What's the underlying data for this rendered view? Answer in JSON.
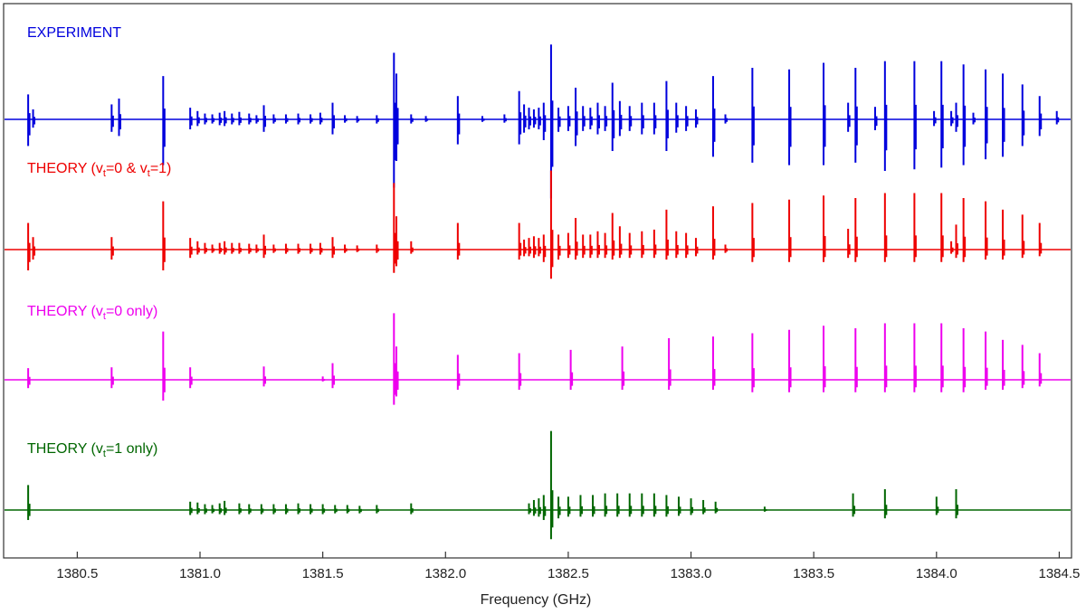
{
  "chart_data": {
    "type": "line",
    "xlabel": "Frequency (GHz)",
    "xlim": [
      1380.2,
      1384.55
    ],
    "xticks": [
      1380.5,
      1381.0,
      1381.5,
      1382.0,
      1382.5,
      1383.0,
      1383.5,
      1384.0,
      1384.5
    ],
    "xtick_labels": [
      "1380.5",
      "1381.0",
      "1381.5",
      "1382.0",
      "1382.5",
      "1383.0",
      "1383.5",
      "1384.0",
      "1384.5"
    ],
    "grid": false,
    "series": [
      {
        "name": "EXPERIMENT",
        "label_parts": [
          {
            "t": "EXPERIMENT"
          }
        ],
        "color": "#0000dd",
        "lines": [
          [
            1380.3,
            0.3,
            0.32
          ],
          [
            1380.32,
            0.12,
            0.1
          ],
          [
            1380.64,
            0.18,
            0.15
          ],
          [
            1380.67,
            0.25,
            0.2
          ],
          [
            1380.85,
            0.52,
            0.55
          ],
          [
            1380.96,
            0.14,
            0.12
          ],
          [
            1380.99,
            0.1,
            0.08
          ],
          [
            1381.02,
            0.07,
            0.06
          ],
          [
            1381.05,
            0.06,
            0.05
          ],
          [
            1381.08,
            0.08,
            0.07
          ],
          [
            1381.1,
            0.1,
            0.08
          ],
          [
            1381.13,
            0.07,
            0.06
          ],
          [
            1381.16,
            0.09,
            0.07
          ],
          [
            1381.2,
            0.07,
            0.06
          ],
          [
            1381.23,
            0.05,
            0.05
          ],
          [
            1381.26,
            0.17,
            0.15
          ],
          [
            1381.3,
            0.06,
            0.05
          ],
          [
            1381.35,
            0.06,
            0.05
          ],
          [
            1381.4,
            0.07,
            0.06
          ],
          [
            1381.45,
            0.06,
            0.05
          ],
          [
            1381.49,
            0.08,
            0.06
          ],
          [
            1381.54,
            0.2,
            0.18
          ],
          [
            1381.59,
            0.05,
            0.04
          ],
          [
            1381.64,
            0.04,
            0.04
          ],
          [
            1381.72,
            0.05,
            0.05
          ],
          [
            1381.79,
            0.8,
            0.82
          ],
          [
            1381.8,
            0.55,
            0.5
          ],
          [
            1381.86,
            0.06,
            0.05
          ],
          [
            1381.92,
            0.04,
            0.03
          ],
          [
            1382.05,
            0.28,
            0.3
          ],
          [
            1382.15,
            0.04,
            0.03
          ],
          [
            1382.24,
            0.06,
            0.04
          ],
          [
            1382.3,
            0.34,
            0.3
          ],
          [
            1382.32,
            0.18,
            0.16
          ],
          [
            1382.34,
            0.14,
            0.12
          ],
          [
            1382.36,
            0.12,
            0.1
          ],
          [
            1382.38,
            0.14,
            0.12
          ],
          [
            1382.4,
            0.2,
            0.25
          ],
          [
            1382.43,
            0.9,
            0.95
          ],
          [
            1382.46,
            0.14,
            0.15
          ],
          [
            1382.5,
            0.16,
            0.14
          ],
          [
            1382.53,
            0.38,
            0.32
          ],
          [
            1382.56,
            0.16,
            0.14
          ],
          [
            1382.59,
            0.14,
            0.12
          ],
          [
            1382.62,
            0.2,
            0.18
          ],
          [
            1382.65,
            0.16,
            0.14
          ],
          [
            1382.68,
            0.44,
            0.38
          ],
          [
            1382.71,
            0.22,
            0.2
          ],
          [
            1382.75,
            0.16,
            0.14
          ],
          [
            1382.8,
            0.2,
            0.18
          ],
          [
            1382.85,
            0.2,
            0.18
          ],
          [
            1382.9,
            0.46,
            0.38
          ],
          [
            1382.94,
            0.2,
            0.16
          ],
          [
            1382.98,
            0.16,
            0.14
          ],
          [
            1383.02,
            0.12,
            0.1
          ],
          [
            1383.09,
            0.52,
            0.45
          ],
          [
            1383.14,
            0.06,
            0.05
          ],
          [
            1383.25,
            0.62,
            0.52
          ],
          [
            1383.4,
            0.6,
            0.55
          ],
          [
            1383.54,
            0.68,
            0.55
          ],
          [
            1383.64,
            0.2,
            0.15
          ],
          [
            1383.67,
            0.62,
            0.52
          ],
          [
            1383.75,
            0.15,
            0.13
          ],
          [
            1383.79,
            0.7,
            0.62
          ],
          [
            1383.91,
            0.7,
            0.6
          ],
          [
            1383.99,
            0.1,
            0.08
          ],
          [
            1384.02,
            0.7,
            0.58
          ],
          [
            1384.06,
            0.1,
            0.08
          ],
          [
            1384.08,
            0.2,
            0.15
          ],
          [
            1384.11,
            0.66,
            0.55
          ],
          [
            1384.15,
            0.08,
            0.06
          ],
          [
            1384.2,
            0.6,
            0.48
          ],
          [
            1384.27,
            0.55,
            0.45
          ],
          [
            1384.35,
            0.42,
            0.32
          ],
          [
            1384.42,
            0.28,
            0.2
          ],
          [
            1384.49,
            0.1,
            0.06
          ]
        ]
      },
      {
        "name": "THEORY (vt=0 & vt=1)",
        "label_parts": [
          {
            "t": "THEORY (v"
          },
          {
            "t": "t",
            "sub": true
          },
          {
            "t": "=0 & v"
          },
          {
            "t": "t",
            "sub": true
          },
          {
            "t": "=1)"
          }
        ],
        "color": "#ee0000",
        "lines": [
          [
            1380.3,
            0.32,
            0.25
          ],
          [
            1380.32,
            0.15,
            0.12
          ],
          [
            1380.64,
            0.15,
            0.12
          ],
          [
            1380.85,
            0.58,
            0.25
          ],
          [
            1380.96,
            0.14,
            0.1
          ],
          [
            1380.99,
            0.1,
            0.06
          ],
          [
            1381.02,
            0.08,
            0.05
          ],
          [
            1381.05,
            0.06,
            0.04
          ],
          [
            1381.08,
            0.08,
            0.05
          ],
          [
            1381.1,
            0.1,
            0.06
          ],
          [
            1381.13,
            0.08,
            0.05
          ],
          [
            1381.16,
            0.08,
            0.05
          ],
          [
            1381.2,
            0.07,
            0.05
          ],
          [
            1381.23,
            0.06,
            0.04
          ],
          [
            1381.26,
            0.18,
            0.1
          ],
          [
            1381.3,
            0.06,
            0.04
          ],
          [
            1381.35,
            0.07,
            0.05
          ],
          [
            1381.4,
            0.07,
            0.05
          ],
          [
            1381.45,
            0.07,
            0.05
          ],
          [
            1381.49,
            0.08,
            0.06
          ],
          [
            1381.54,
            0.15,
            0.1
          ],
          [
            1381.59,
            0.06,
            0.04
          ],
          [
            1381.64,
            0.05,
            0.03
          ],
          [
            1381.72,
            0.06,
            0.04
          ],
          [
            1381.79,
            0.8,
            0.28
          ],
          [
            1381.8,
            0.4,
            0.2
          ],
          [
            1381.86,
            0.1,
            0.05
          ],
          [
            1382.05,
            0.32,
            0.12
          ],
          [
            1382.3,
            0.32,
            0.12
          ],
          [
            1382.32,
            0.12,
            0.08
          ],
          [
            1382.34,
            0.14,
            0.08
          ],
          [
            1382.36,
            0.16,
            0.1
          ],
          [
            1382.38,
            0.14,
            0.08
          ],
          [
            1382.4,
            0.18,
            0.15
          ],
          [
            1382.43,
            0.95,
            0.35
          ],
          [
            1382.46,
            0.18,
            0.12
          ],
          [
            1382.5,
            0.2,
            0.1
          ],
          [
            1382.53,
            0.38,
            0.12
          ],
          [
            1382.56,
            0.18,
            0.1
          ],
          [
            1382.59,
            0.18,
            0.1
          ],
          [
            1382.62,
            0.22,
            0.1
          ],
          [
            1382.65,
            0.2,
            0.1
          ],
          [
            1382.68,
            0.44,
            0.12
          ],
          [
            1382.71,
            0.28,
            0.1
          ],
          [
            1382.75,
            0.2,
            0.1
          ],
          [
            1382.8,
            0.22,
            0.1
          ],
          [
            1382.85,
            0.24,
            0.1
          ],
          [
            1382.9,
            0.48,
            0.12
          ],
          [
            1382.94,
            0.22,
            0.1
          ],
          [
            1382.98,
            0.2,
            0.1
          ],
          [
            1383.02,
            0.14,
            0.08
          ],
          [
            1383.09,
            0.52,
            0.12
          ],
          [
            1383.14,
            0.06,
            0.04
          ],
          [
            1383.25,
            0.56,
            0.15
          ],
          [
            1383.4,
            0.6,
            0.15
          ],
          [
            1383.54,
            0.65,
            0.15
          ],
          [
            1383.64,
            0.25,
            0.1
          ],
          [
            1383.67,
            0.62,
            0.15
          ],
          [
            1383.79,
            0.68,
            0.15
          ],
          [
            1383.91,
            0.68,
            0.15
          ],
          [
            1384.02,
            0.68,
            0.15
          ],
          [
            1384.06,
            0.1,
            0.05
          ],
          [
            1384.08,
            0.3,
            0.1
          ],
          [
            1384.11,
            0.62,
            0.15
          ],
          [
            1384.2,
            0.58,
            0.12
          ],
          [
            1384.27,
            0.48,
            0.12
          ],
          [
            1384.35,
            0.42,
            0.1
          ],
          [
            1384.42,
            0.32,
            0.08
          ]
        ]
      },
      {
        "name": "THEORY (vt=0 only)",
        "label_parts": [
          {
            "t": "THEORY (v"
          },
          {
            "t": "t",
            "sub": true
          },
          {
            "t": "=0 only)"
          }
        ],
        "color": "#ee00ee",
        "lines": [
          [
            1380.3,
            0.14,
            0.1
          ],
          [
            1380.64,
            0.15,
            0.1
          ],
          [
            1380.85,
            0.58,
            0.25
          ],
          [
            1380.96,
            0.15,
            0.1
          ],
          [
            1381.26,
            0.16,
            0.08
          ],
          [
            1381.5,
            0.04,
            0.02
          ],
          [
            1381.54,
            0.2,
            0.1
          ],
          [
            1381.79,
            0.8,
            0.3
          ],
          [
            1381.8,
            0.4,
            0.2
          ],
          [
            1382.05,
            0.3,
            0.12
          ],
          [
            1382.3,
            0.32,
            0.12
          ],
          [
            1382.51,
            0.36,
            0.12
          ],
          [
            1382.72,
            0.4,
            0.12
          ],
          [
            1382.91,
            0.5,
            0.12
          ],
          [
            1383.09,
            0.52,
            0.12
          ],
          [
            1383.25,
            0.56,
            0.15
          ],
          [
            1383.4,
            0.6,
            0.15
          ],
          [
            1383.54,
            0.65,
            0.15
          ],
          [
            1383.67,
            0.62,
            0.15
          ],
          [
            1383.79,
            0.68,
            0.15
          ],
          [
            1383.91,
            0.68,
            0.15
          ],
          [
            1384.02,
            0.68,
            0.15
          ],
          [
            1384.11,
            0.62,
            0.15
          ],
          [
            1384.2,
            0.58,
            0.12
          ],
          [
            1384.27,
            0.48,
            0.12
          ],
          [
            1384.35,
            0.42,
            0.1
          ],
          [
            1384.42,
            0.32,
            0.08
          ]
        ]
      },
      {
        "name": "THEORY (vt=1 only)",
        "label_parts": [
          {
            "t": "THEORY (v"
          },
          {
            "t": "t",
            "sub": true
          },
          {
            "t": "=1 only)"
          }
        ],
        "color": "#006600",
        "lines": [
          [
            1380.3,
            0.3,
            0.12
          ],
          [
            1380.96,
            0.1,
            0.06
          ],
          [
            1380.99,
            0.09,
            0.05
          ],
          [
            1381.02,
            0.07,
            0.05
          ],
          [
            1381.05,
            0.06,
            0.04
          ],
          [
            1381.08,
            0.08,
            0.05
          ],
          [
            1381.1,
            0.11,
            0.06
          ],
          [
            1381.16,
            0.08,
            0.05
          ],
          [
            1381.2,
            0.07,
            0.05
          ],
          [
            1381.25,
            0.07,
            0.05
          ],
          [
            1381.3,
            0.07,
            0.05
          ],
          [
            1381.35,
            0.07,
            0.05
          ],
          [
            1381.4,
            0.08,
            0.05
          ],
          [
            1381.45,
            0.07,
            0.05
          ],
          [
            1381.5,
            0.07,
            0.05
          ],
          [
            1381.55,
            0.06,
            0.04
          ],
          [
            1381.6,
            0.06,
            0.04
          ],
          [
            1381.65,
            0.05,
            0.04
          ],
          [
            1381.72,
            0.06,
            0.04
          ],
          [
            1381.86,
            0.08,
            0.05
          ],
          [
            1382.34,
            0.08,
            0.05
          ],
          [
            1382.36,
            0.12,
            0.07
          ],
          [
            1382.38,
            0.14,
            0.08
          ],
          [
            1382.4,
            0.18,
            0.12
          ],
          [
            1382.43,
            0.95,
            0.35
          ],
          [
            1382.46,
            0.16,
            0.1
          ],
          [
            1382.5,
            0.16,
            0.08
          ],
          [
            1382.55,
            0.18,
            0.08
          ],
          [
            1382.6,
            0.18,
            0.08
          ],
          [
            1382.65,
            0.2,
            0.08
          ],
          [
            1382.7,
            0.2,
            0.08
          ],
          [
            1382.75,
            0.2,
            0.08
          ],
          [
            1382.8,
            0.2,
            0.08
          ],
          [
            1382.85,
            0.2,
            0.08
          ],
          [
            1382.9,
            0.18,
            0.08
          ],
          [
            1382.95,
            0.16,
            0.07
          ],
          [
            1383.0,
            0.14,
            0.06
          ],
          [
            1383.05,
            0.12,
            0.05
          ],
          [
            1383.1,
            0.1,
            0.04
          ],
          [
            1383.3,
            0.04,
            0.02
          ],
          [
            1383.66,
            0.2,
            0.08
          ],
          [
            1383.79,
            0.25,
            0.1
          ],
          [
            1384.0,
            0.16,
            0.06
          ],
          [
            1384.08,
            0.25,
            0.1
          ]
        ]
      }
    ]
  }
}
